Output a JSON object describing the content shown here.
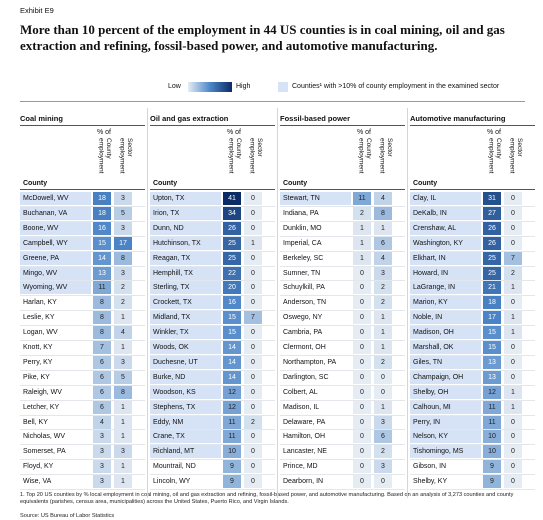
{
  "header": {
    "exhibit": "Exhibit E9",
    "title": "More than 10 percent of the employment in 44 US counties is in coal mining, oil and gas extraction and refining, fossil-based power, and automotive manufacturing."
  },
  "legend": {
    "low": "Low",
    "high": "High",
    "highlight": "Counties¹ with >10% of county employment in the examined sector"
  },
  "columns": {
    "county": "County",
    "pct_of": "% of",
    "county_emp": "County employment",
    "sector_emp": "Sector employment"
  },
  "panels": [
    {
      "title": "Coal mining",
      "rows": [
        {
          "county": "McDowell, WV",
          "county_pct": 18,
          "sector_pct": 3,
          "highlighted": true
        },
        {
          "county": "Buchanan, VA",
          "county_pct": 18,
          "sector_pct": 5,
          "highlighted": true
        },
        {
          "county": "Boone, WV",
          "county_pct": 16,
          "sector_pct": 3,
          "highlighted": true
        },
        {
          "county": "Campbell, WY",
          "county_pct": 15,
          "sector_pct": 17,
          "highlighted": true
        },
        {
          "county": "Greene, PA",
          "county_pct": 14,
          "sector_pct": 8,
          "highlighted": true
        },
        {
          "county": "Mingo, WV",
          "county_pct": 13,
          "sector_pct": 3,
          "highlighted": true
        },
        {
          "county": "Wyoming, WV",
          "county_pct": 11,
          "sector_pct": 2,
          "highlighted": true
        },
        {
          "county": "Harlan, KY",
          "county_pct": 8,
          "sector_pct": 2,
          "highlighted": false
        },
        {
          "county": "Leslie, KY",
          "county_pct": 8,
          "sector_pct": 1,
          "highlighted": false
        },
        {
          "county": "Logan, WV",
          "county_pct": 8,
          "sector_pct": 4,
          "highlighted": false
        },
        {
          "county": "Knott, KY",
          "county_pct": 7,
          "sector_pct": 1,
          "highlighted": false
        },
        {
          "county": "Perry, KY",
          "county_pct": 6,
          "sector_pct": 3,
          "highlighted": false
        },
        {
          "county": "Pike, KY",
          "county_pct": 6,
          "sector_pct": 5,
          "highlighted": false
        },
        {
          "county": "Raleigh, WV",
          "county_pct": 6,
          "sector_pct": 8,
          "highlighted": false
        },
        {
          "county": "Letcher, KY",
          "county_pct": 6,
          "sector_pct": 1,
          "highlighted": false
        },
        {
          "county": "Bell, KY",
          "county_pct": 4,
          "sector_pct": 1,
          "highlighted": false
        },
        {
          "county": "Nicholas, WV",
          "county_pct": 3,
          "sector_pct": 1,
          "highlighted": false
        },
        {
          "county": "Somerset, PA",
          "county_pct": 3,
          "sector_pct": 3,
          "highlighted": false
        },
        {
          "county": "Floyd, KY",
          "county_pct": 3,
          "sector_pct": 1,
          "highlighted": false
        },
        {
          "county": "Wise, VA",
          "county_pct": 3,
          "sector_pct": 1,
          "highlighted": false
        }
      ]
    },
    {
      "title": "Oil and gas extraction",
      "rows": [
        {
          "county": "Upton, TX",
          "county_pct": 41,
          "sector_pct": 0,
          "highlighted": true
        },
        {
          "county": "Irion, TX",
          "county_pct": 34,
          "sector_pct": 0,
          "highlighted": true
        },
        {
          "county": "Dunn, ND",
          "county_pct": 26,
          "sector_pct": 0,
          "highlighted": true
        },
        {
          "county": "Hutchinson, TX",
          "county_pct": 25,
          "sector_pct": 1,
          "highlighted": true
        },
        {
          "county": "Reagan, TX",
          "county_pct": 25,
          "sector_pct": 0,
          "highlighted": true
        },
        {
          "county": "Hemphill, TX",
          "county_pct": 22,
          "sector_pct": 0,
          "highlighted": true
        },
        {
          "county": "Sterling, TX",
          "county_pct": 20,
          "sector_pct": 0,
          "highlighted": true
        },
        {
          "county": "Crockett, TX",
          "county_pct": 16,
          "sector_pct": 0,
          "highlighted": true
        },
        {
          "county": "Midland, TX",
          "county_pct": 15,
          "sector_pct": 7,
          "highlighted": true
        },
        {
          "county": "Winkler, TX",
          "county_pct": 15,
          "sector_pct": 0,
          "highlighted": true
        },
        {
          "county": "Woods, OK",
          "county_pct": 14,
          "sector_pct": 0,
          "highlighted": true
        },
        {
          "county": "Duchesne, UT",
          "county_pct": 14,
          "sector_pct": 0,
          "highlighted": true
        },
        {
          "county": "Burke, ND",
          "county_pct": 14,
          "sector_pct": 0,
          "highlighted": true
        },
        {
          "county": "Woodson, KS",
          "county_pct": 12,
          "sector_pct": 0,
          "highlighted": true
        },
        {
          "county": "Stephens, TX",
          "county_pct": 12,
          "sector_pct": 0,
          "highlighted": true
        },
        {
          "county": "Eddy, NM",
          "county_pct": 11,
          "sector_pct": 2,
          "highlighted": true
        },
        {
          "county": "Crane, TX",
          "county_pct": 11,
          "sector_pct": 0,
          "highlighted": true
        },
        {
          "county": "Richland, MT",
          "county_pct": 10,
          "sector_pct": 0,
          "highlighted": true
        },
        {
          "county": "Mountrail, ND",
          "county_pct": 9,
          "sector_pct": 0,
          "highlighted": false
        },
        {
          "county": "Lincoln, WY",
          "county_pct": 9,
          "sector_pct": 0,
          "highlighted": false
        }
      ]
    },
    {
      "title": "Fossil-based power",
      "rows": [
        {
          "county": "Stewart, TN",
          "county_pct": 11,
          "sector_pct": 4,
          "highlighted": true
        },
        {
          "county": "Indiana, PA",
          "county_pct": 2,
          "sector_pct": 8,
          "highlighted": false
        },
        {
          "county": "Dunklin, MO",
          "county_pct": 1,
          "sector_pct": 1,
          "highlighted": false
        },
        {
          "county": "Imperial, CA",
          "county_pct": 1,
          "sector_pct": 6,
          "highlighted": false
        },
        {
          "county": "Berkeley, SC",
          "county_pct": 1,
          "sector_pct": 4,
          "highlighted": false
        },
        {
          "county": "Sumner, TN",
          "county_pct": 0,
          "sector_pct": 3,
          "highlighted": false
        },
        {
          "county": "Schuylkill, PA",
          "county_pct": 0,
          "sector_pct": 2,
          "highlighted": false
        },
        {
          "county": "Anderson, TN",
          "county_pct": 0,
          "sector_pct": 2,
          "highlighted": false
        },
        {
          "county": "Oswego, NY",
          "county_pct": 0,
          "sector_pct": 1,
          "highlighted": false
        },
        {
          "county": "Cambria, PA",
          "county_pct": 0,
          "sector_pct": 1,
          "highlighted": false
        },
        {
          "county": "Clermont, OH",
          "county_pct": 0,
          "sector_pct": 1,
          "highlighted": false
        },
        {
          "county": "Northampton, PA",
          "county_pct": 0,
          "sector_pct": 2,
          "highlighted": false
        },
        {
          "county": "Darlington, SC",
          "county_pct": 0,
          "sector_pct": 0,
          "highlighted": false
        },
        {
          "county": "Colbert, AL",
          "county_pct": 0,
          "sector_pct": 0,
          "highlighted": false
        },
        {
          "county": "Madison, IL",
          "county_pct": 0,
          "sector_pct": 1,
          "highlighted": false
        },
        {
          "county": "Delaware, PA",
          "county_pct": 0,
          "sector_pct": 3,
          "highlighted": false
        },
        {
          "county": "Hamilton, OH",
          "county_pct": 0,
          "sector_pct": 6,
          "highlighted": false
        },
        {
          "county": "Lancaster, NE",
          "county_pct": 0,
          "sector_pct": 2,
          "highlighted": false
        },
        {
          "county": "Prince, MD",
          "county_pct": 0,
          "sector_pct": 3,
          "highlighted": false
        },
        {
          "county": "Dearborn, IN",
          "county_pct": 0,
          "sector_pct": 0,
          "highlighted": false
        }
      ]
    },
    {
      "title": "Automotive manufacturing",
      "rows": [
        {
          "county": "Clay, IL",
          "county_pct": 31,
          "sector_pct": 0,
          "highlighted": true
        },
        {
          "county": "DeKalb, IN",
          "county_pct": 27,
          "sector_pct": 0,
          "highlighted": true
        },
        {
          "county": "Crenshaw, AL",
          "county_pct": 26,
          "sector_pct": 0,
          "highlighted": true
        },
        {
          "county": "Washington, KY",
          "county_pct": 26,
          "sector_pct": 0,
          "highlighted": true
        },
        {
          "county": "Elkhart, IN",
          "county_pct": 25,
          "sector_pct": 7,
          "highlighted": true
        },
        {
          "county": "Howard, IN",
          "county_pct": 25,
          "sector_pct": 2,
          "highlighted": true
        },
        {
          "county": "LaGrange, IN",
          "county_pct": 21,
          "sector_pct": 1,
          "highlighted": true
        },
        {
          "county": "Marion, KY",
          "county_pct": 18,
          "sector_pct": 0,
          "highlighted": true
        },
        {
          "county": "Noble, IN",
          "county_pct": 17,
          "sector_pct": 1,
          "highlighted": true
        },
        {
          "county": "Madison, OH",
          "county_pct": 15,
          "sector_pct": 1,
          "highlighted": true
        },
        {
          "county": "Marshall, OK",
          "county_pct": 15,
          "sector_pct": 0,
          "highlighted": true
        },
        {
          "county": "Giles, TN",
          "county_pct": 13,
          "sector_pct": 0,
          "highlighted": true
        },
        {
          "county": "Champaign, OH",
          "county_pct": 13,
          "sector_pct": 0,
          "highlighted": true
        },
        {
          "county": "Shelby, OH",
          "county_pct": 12,
          "sector_pct": 1,
          "highlighted": true
        },
        {
          "county": "Calhoun, MI",
          "county_pct": 11,
          "sector_pct": 1,
          "highlighted": true
        },
        {
          "county": "Perry, IN",
          "county_pct": 11,
          "sector_pct": 0,
          "highlighted": true
        },
        {
          "county": "Nelson, KY",
          "county_pct": 10,
          "sector_pct": 0,
          "highlighted": true
        },
        {
          "county": "Tishomingo, MS",
          "county_pct": 10,
          "sector_pct": 0,
          "highlighted": true
        },
        {
          "county": "Gibson, IN",
          "county_pct": 9,
          "sector_pct": 0,
          "highlighted": false
        },
        {
          "county": "Shelby, KY",
          "county_pct": 9,
          "sector_pct": 0,
          "highlighted": false
        }
      ]
    }
  ],
  "footer": {
    "note": "1. Top 20 US counties by % local employment in coal mining, oil and gas extraction and refining, fossil-based power, and automotive manufacturing. Based on an analysis of 3,273 counties and county equivalents (parishes, census area, municipalities) across the United States, Puerto Rico, and Virgin Islands.",
    "source": "Source: US Bureau of Labor Statistics"
  }
}
